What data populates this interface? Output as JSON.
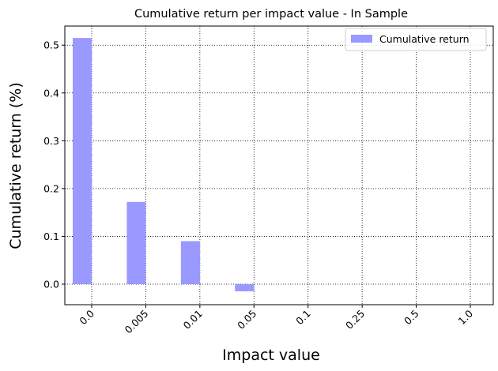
{
  "chart_data": {
    "type": "bar",
    "title": "Cumulative return per impact value - In Sample",
    "xlabel": "Impact value",
    "ylabel": "Cumulative return (%)",
    "categories": [
      "0.0",
      "0.005",
      "0.01",
      "0.05",
      "0.1",
      "0.25",
      "0.5",
      "1.0"
    ],
    "series": [
      {
        "name": "Cumulative return",
        "color": "#9999ff",
        "values": [
          0.515,
          0.172,
          0.09,
          -0.015,
          0.0,
          0.0,
          0.0,
          0.0
        ]
      }
    ],
    "yticks": [
      "0.0",
      "0.1",
      "0.2",
      "0.3",
      "0.4",
      "0.5"
    ],
    "ylim": [
      -0.043,
      0.54
    ],
    "grid": true,
    "grid_style": "dotted",
    "legend_position": "top-right"
  }
}
